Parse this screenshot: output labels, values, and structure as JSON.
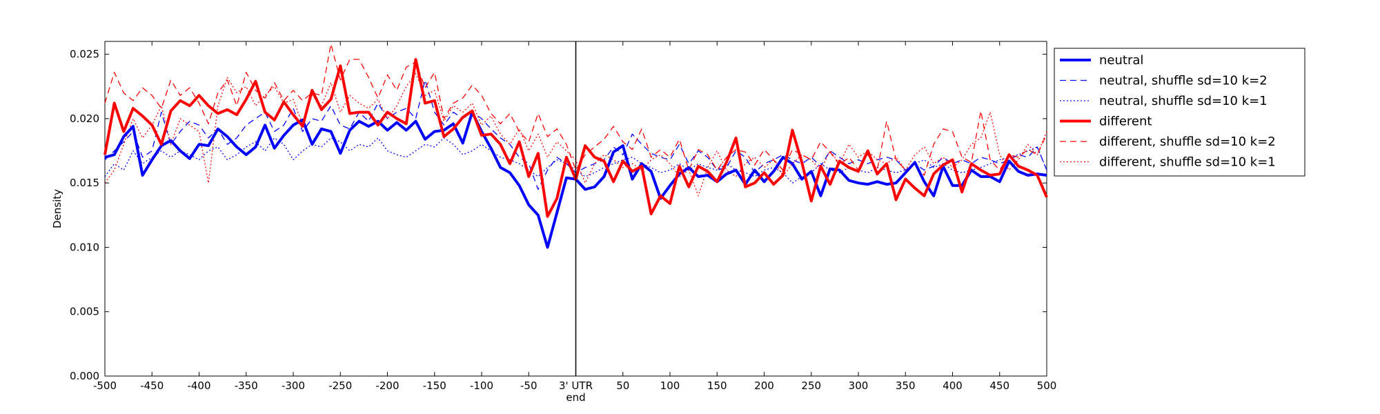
{
  "chart_data": {
    "type": "line",
    "xlabel": "",
    "ylabel": "Density",
    "xlim": [
      -500,
      500
    ],
    "ylim": [
      0,
      0.026
    ],
    "x_ticks": [
      -500,
      -450,
      -400,
      -350,
      -300,
      -250,
      -200,
      -150,
      -100,
      -50,
      0,
      50,
      100,
      150,
      200,
      250,
      300,
      350,
      400,
      450,
      500
    ],
    "x_tick_labels": [
      "-500",
      "-450",
      "-400",
      "-350",
      "-300",
      "-250",
      "-200",
      "-150",
      "-100",
      "-50",
      "3' UTR",
      "50",
      "100",
      "150",
      "200",
      "250",
      "300",
      "350",
      "400",
      "450",
      "500"
    ],
    "x_tick_sublabel": "end",
    "y_ticks": [
      0,
      0.005,
      0.01,
      0.015,
      0.02,
      0.025
    ],
    "y_tick_labels": [
      "0.000",
      "0.005",
      "0.010",
      "0.015",
      "0.020",
      "0.025"
    ],
    "vertical_line_x": 0,
    "grid": false,
    "legend_position": "outside-right",
    "x": [
      -500,
      -490,
      -480,
      -470,
      -460,
      -450,
      -440,
      -430,
      -420,
      -410,
      -400,
      -390,
      -380,
      -370,
      -360,
      -350,
      -340,
      -330,
      -320,
      -310,
      -300,
      -290,
      -280,
      -270,
      -260,
      -250,
      -240,
      -230,
      -220,
      -210,
      -200,
      -190,
      -180,
      -170,
      -160,
      -150,
      -140,
      -130,
      -120,
      -110,
      -100,
      -90,
      -80,
      -70,
      -60,
      -50,
      -40,
      -30,
      -20,
      -10,
      0,
      10,
      20,
      30,
      40,
      50,
      60,
      70,
      80,
      90,
      100,
      110,
      120,
      130,
      140,
      150,
      160,
      170,
      180,
      190,
      200,
      210,
      220,
      230,
      240,
      250,
      260,
      270,
      280,
      290,
      300,
      310,
      320,
      330,
      340,
      350,
      360,
      370,
      380,
      390,
      400,
      410,
      420,
      430,
      440,
      450,
      460,
      470,
      480,
      490,
      500
    ],
    "series": [
      {
        "name": "neutral",
        "color": "#0000ff",
        "style": "solid",
        "width": 4,
        "values": [
          0.017,
          0.0172,
          0.0186,
          0.0194,
          0.0156,
          0.0168,
          0.0179,
          0.0183,
          0.0175,
          0.0169,
          0.018,
          0.0179,
          0.0192,
          0.0186,
          0.0178,
          0.0172,
          0.0178,
          0.0195,
          0.0177,
          0.0187,
          0.0195,
          0.0199,
          0.018,
          0.0192,
          0.019,
          0.0173,
          0.0191,
          0.0198,
          0.0194,
          0.0198,
          0.0191,
          0.0197,
          0.0191,
          0.0198,
          0.0184,
          0.019,
          0.0191,
          0.0196,
          0.0181,
          0.0205,
          0.019,
          0.0177,
          0.0162,
          0.0158,
          0.0148,
          0.0133,
          0.0125,
          0.01,
          0.0127,
          0.0154,
          0.0153,
          0.0145,
          0.0147,
          0.0155,
          0.0174,
          0.0179,
          0.0153,
          0.0165,
          0.0159,
          0.0138,
          0.0148,
          0.0157,
          0.0162,
          0.0155,
          0.0156,
          0.0151,
          0.0157,
          0.016,
          0.0149,
          0.016,
          0.0151,
          0.0159,
          0.017,
          0.0165,
          0.0153,
          0.0159,
          0.014,
          0.0161,
          0.016,
          0.0152,
          0.015,
          0.0149,
          0.0151,
          0.0149,
          0.015,
          0.0158,
          0.0166,
          0.0151,
          0.014,
          0.0163,
          0.0148,
          0.0148,
          0.016,
          0.0155,
          0.0155,
          0.0151,
          0.0167,
          0.0159,
          0.0156,
          0.0157,
          0.0156
        ]
      },
      {
        "name": "neutral, shuffle sd=10 k=2",
        "color": "#0000ff",
        "style": "dashed",
        "width": 1.3,
        "values": [
          0.0168,
          0.0175,
          0.0182,
          0.019,
          0.017,
          0.0175,
          0.0205,
          0.018,
          0.019,
          0.0198,
          0.0195,
          0.0185,
          0.0192,
          0.018,
          0.0185,
          0.0195,
          0.02,
          0.0205,
          0.019,
          0.0195,
          0.0208,
          0.019,
          0.02,
          0.0198,
          0.021,
          0.0195,
          0.0192,
          0.0205,
          0.0198,
          0.0212,
          0.02,
          0.0205,
          0.0208,
          0.02,
          0.023,
          0.0205,
          0.0195,
          0.0205,
          0.02,
          0.0205,
          0.02,
          0.0192,
          0.0185,
          0.018,
          0.017,
          0.0165,
          0.0145,
          0.016,
          0.017,
          0.0165,
          0.0158,
          0.0162,
          0.0165,
          0.0168,
          0.0178,
          0.0172,
          0.0188,
          0.018,
          0.0173,
          0.017,
          0.0168,
          0.018,
          0.0165,
          0.0175,
          0.017,
          0.016,
          0.0162,
          0.0175,
          0.017,
          0.0158,
          0.0165,
          0.0168,
          0.0172,
          0.0168,
          0.0165,
          0.017,
          0.0163,
          0.0175,
          0.017,
          0.0165,
          0.0168,
          0.0165,
          0.0168,
          0.017,
          0.0168,
          0.016,
          0.0165,
          0.016,
          0.0163,
          0.017,
          0.0165,
          0.0168,
          0.0165,
          0.017,
          0.0168,
          0.0165,
          0.0168,
          0.0172,
          0.017,
          0.0178,
          0.016
        ]
      },
      {
        "name": "neutral, shuffle sd=10 k=1",
        "color": "#0000ff",
        "style": "dotted",
        "width": 1.3,
        "values": [
          0.0155,
          0.0165,
          0.016,
          0.0175,
          0.0165,
          0.017,
          0.0175,
          0.017,
          0.0175,
          0.0172,
          0.0168,
          0.0175,
          0.0178,
          0.0168,
          0.0172,
          0.0178,
          0.0182,
          0.0175,
          0.0185,
          0.018,
          0.0168,
          0.0175,
          0.018,
          0.0178,
          0.0185,
          0.0182,
          0.0175,
          0.018,
          0.0178,
          0.0185,
          0.0175,
          0.0172,
          0.017,
          0.0175,
          0.018,
          0.0178,
          0.0185,
          0.018,
          0.0172,
          0.0175,
          0.018,
          0.0175,
          0.017,
          0.0168,
          0.0165,
          0.016,
          0.0155,
          0.0162,
          0.0168,
          0.0165,
          0.016,
          0.0155,
          0.0158,
          0.0162,
          0.0165,
          0.0168,
          0.017,
          0.0165,
          0.0162,
          0.0158,
          0.016,
          0.0165,
          0.016,
          0.0165,
          0.0162,
          0.016,
          0.0165,
          0.016,
          0.0158,
          0.0155,
          0.016,
          0.0162,
          0.0158,
          0.015,
          0.0155,
          0.0158,
          0.0165,
          0.016,
          0.0158,
          0.0162,
          0.016,
          0.0158,
          0.0162,
          0.016,
          0.0158,
          0.016,
          0.0165,
          0.0168,
          0.0162,
          0.0165,
          0.016,
          0.0158,
          0.016,
          0.0162,
          0.0165,
          0.0168,
          0.017,
          0.0172,
          0.0175,
          0.0178,
          0.016
        ]
      },
      {
        "name": "different",
        "color": "#ff0000",
        "style": "solid",
        "width": 4,
        "values": [
          0.0172,
          0.0212,
          0.019,
          0.0208,
          0.0202,
          0.0195,
          0.018,
          0.0206,
          0.0214,
          0.021,
          0.0218,
          0.021,
          0.0204,
          0.0207,
          0.0203,
          0.0215,
          0.0229,
          0.0205,
          0.0199,
          0.0213,
          0.0203,
          0.0194,
          0.0222,
          0.0207,
          0.0215,
          0.0241,
          0.0204,
          0.0205,
          0.0205,
          0.0195,
          0.0205,
          0.02,
          0.0196,
          0.0246,
          0.0212,
          0.0214,
          0.0186,
          0.0192,
          0.0201,
          0.0206,
          0.0187,
          0.0188,
          0.018,
          0.0165,
          0.0182,
          0.0155,
          0.0173,
          0.0124,
          0.0138,
          0.017,
          0.0153,
          0.0179,
          0.017,
          0.0167,
          0.0151,
          0.0167,
          0.0159,
          0.0163,
          0.0126,
          0.014,
          0.0134,
          0.0163,
          0.0147,
          0.0163,
          0.0159,
          0.0151,
          0.0166,
          0.0185,
          0.0147,
          0.015,
          0.0158,
          0.0149,
          0.0156,
          0.0191,
          0.0166,
          0.0136,
          0.0163,
          0.0149,
          0.0167,
          0.0162,
          0.0159,
          0.0175,
          0.0157,
          0.0165,
          0.0137,
          0.0153,
          0.0146,
          0.014,
          0.0157,
          0.0164,
          0.0168,
          0.0143,
          0.0165,
          0.016,
          0.0156,
          0.0157,
          0.0172,
          0.0163,
          0.016,
          0.0156,
          0.0139
        ]
      },
      {
        "name": "different, shuffle sd=10 k=2",
        "color": "#ff0000",
        "style": "dashed",
        "width": 1.3,
        "values": [
          0.0212,
          0.0236,
          0.022,
          0.0214,
          0.0224,
          0.0218,
          0.0208,
          0.023,
          0.0218,
          0.0224,
          0.0212,
          0.0196,
          0.022,
          0.023,
          0.021,
          0.0236,
          0.0222,
          0.0216,
          0.0228,
          0.0214,
          0.0222,
          0.0214,
          0.022,
          0.0218,
          0.0258,
          0.023,
          0.0246,
          0.0246,
          0.0232,
          0.0216,
          0.0234,
          0.0222,
          0.024,
          0.0244,
          0.0224,
          0.0236,
          0.02,
          0.0212,
          0.0216,
          0.0226,
          0.0218,
          0.0204,
          0.0196,
          0.0204,
          0.019,
          0.0182,
          0.0204,
          0.0186,
          0.0192,
          0.018,
          0.016,
          0.0172,
          0.0178,
          0.0184,
          0.0194,
          0.0182,
          0.0176,
          0.0192,
          0.017,
          0.0176,
          0.017,
          0.0184,
          0.016,
          0.0176,
          0.0172,
          0.016,
          0.017,
          0.0176,
          0.0174,
          0.0164,
          0.0176,
          0.0168,
          0.016,
          0.0176,
          0.0172,
          0.0168,
          0.0182,
          0.0174,
          0.0164,
          0.017,
          0.016,
          0.0172,
          0.016,
          0.0198,
          0.0168,
          0.016,
          0.0164,
          0.0156,
          0.018,
          0.0192,
          0.019,
          0.017,
          0.0166,
          0.0206,
          0.0168,
          0.016,
          0.0172,
          0.017,
          0.0176,
          0.0172,
          0.0188
        ]
      },
      {
        "name": "different, shuffle sd=10 k=1",
        "color": "#ff0000",
        "style": "dotted",
        "width": 1.3,
        "values": [
          0.015,
          0.016,
          0.018,
          0.02,
          0.0185,
          0.0195,
          0.021,
          0.018,
          0.02,
          0.0195,
          0.019,
          0.015,
          0.021,
          0.0232,
          0.022,
          0.0225,
          0.021,
          0.0218,
          0.0225,
          0.0212,
          0.0215,
          0.0195,
          0.0218,
          0.021,
          0.0228,
          0.0205,
          0.0218,
          0.0212,
          0.0208,
          0.0215,
          0.02,
          0.021,
          0.0225,
          0.0235,
          0.0218,
          0.0222,
          0.0198,
          0.021,
          0.0205,
          0.0212,
          0.0195,
          0.0202,
          0.0188,
          0.018,
          0.0192,
          0.0175,
          0.0188,
          0.017,
          0.0182,
          0.0175,
          0.0168,
          0.015,
          0.0165,
          0.0172,
          0.0168,
          0.0162,
          0.0165,
          0.016,
          0.0168,
          0.0172,
          0.0165,
          0.0155,
          0.016,
          0.014,
          0.0162,
          0.0175,
          0.016,
          0.0155,
          0.0165,
          0.017,
          0.0162,
          0.0168,
          0.0155,
          0.0165,
          0.0172,
          0.0168,
          0.016,
          0.0175,
          0.0165,
          0.018,
          0.017,
          0.0175,
          0.0168,
          0.0165,
          0.017,
          0.016,
          0.0172,
          0.0178,
          0.0165,
          0.017,
          0.0162,
          0.0168,
          0.018,
          0.0185,
          0.0205,
          0.0172,
          0.016,
          0.0168,
          0.018,
          0.0172,
          0.019
        ]
      }
    ]
  }
}
